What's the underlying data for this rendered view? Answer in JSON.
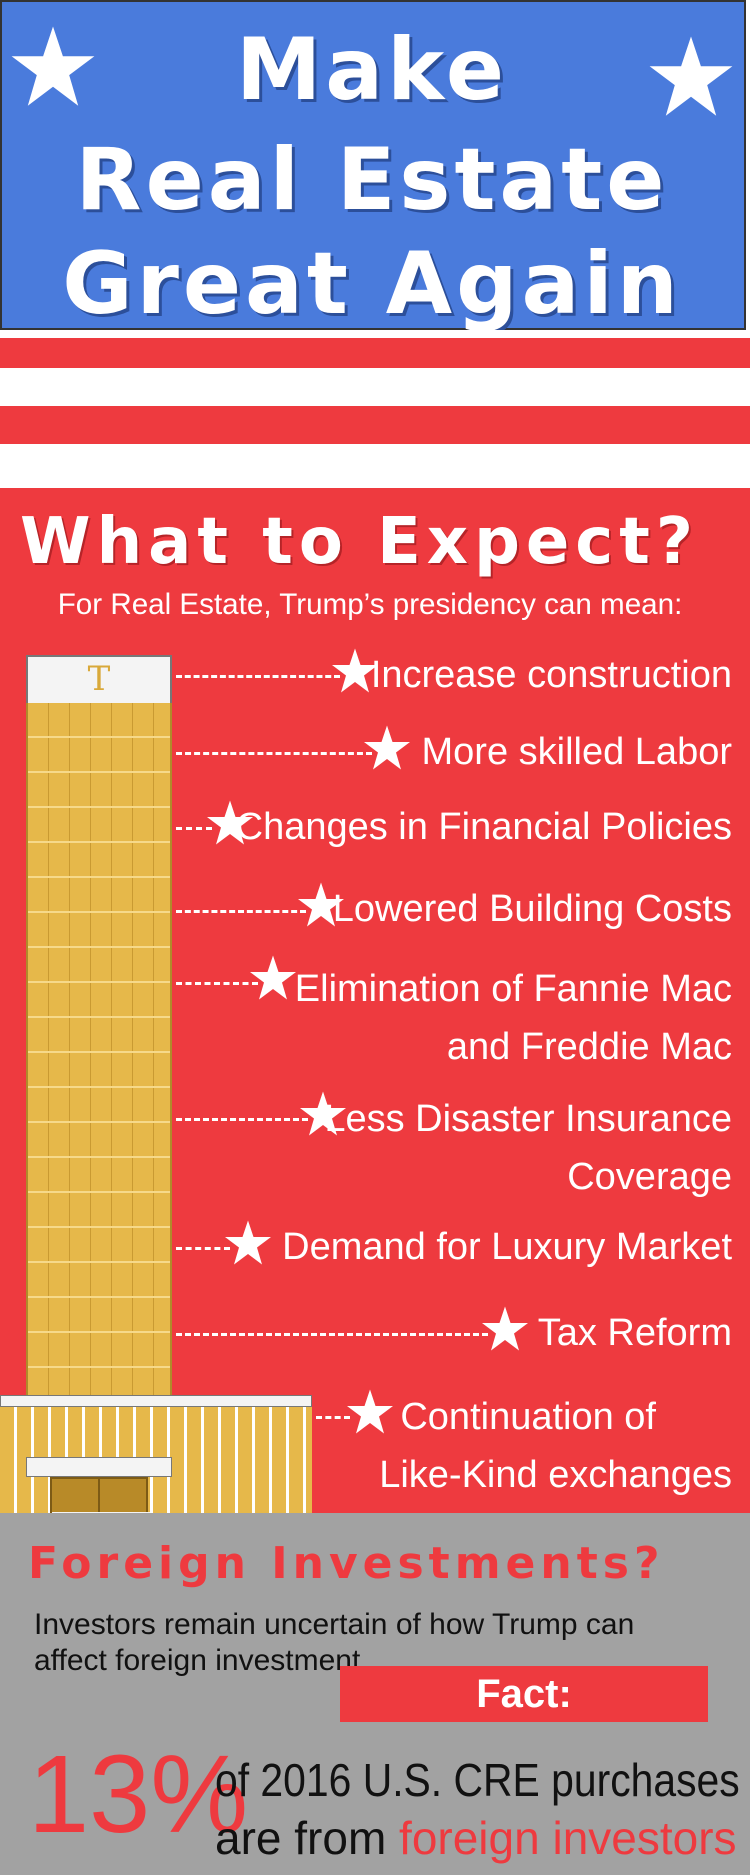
{
  "header": {
    "title_line_1": "Make",
    "title_line_2": "Real Estate",
    "title_line_3": "Great Again"
  },
  "expect": {
    "title": "What to Expect?",
    "subtitle": "For Real Estate, Trump’s presidency can mean:",
    "building_letter": "T",
    "items": [
      {
        "line1": "Increase construction",
        "line2": ""
      },
      {
        "line1": "More skilled Labor",
        "line2": ""
      },
      {
        "line1": "Changes in Financial Policies",
        "line2": ""
      },
      {
        "line1": "Lowered Building Costs",
        "line2": ""
      },
      {
        "line1": "Elimination of Fannie Mac",
        "line2": "and Freddie Mac"
      },
      {
        "line1": "Less Disaster Insurance",
        "line2": "Coverage"
      },
      {
        "line1": "Demand  for Luxury Market",
        "line2": ""
      },
      {
        "line1": "Tax Reform",
        "line2": ""
      },
      {
        "line1": "Continuation of",
        "line2": "Like-Kind exchanges"
      }
    ]
  },
  "foreign": {
    "title": "Foreign Investments?",
    "description": "Investors remain uncertain of  how Trump can affect foreign investment.",
    "fact_label": "Fact:",
    "fact_percent": "13%",
    "fact_line_1": "of 2016 U.S. CRE purchases",
    "fact_line_2_prefix": "are from ",
    "fact_line_2_highlight": "foreign investors"
  },
  "colors": {
    "blue": "#4a7bdc",
    "red": "#ee3a3f",
    "gold": "#e6b84a",
    "gray": "#a2a2a2",
    "white": "#ffffff"
  }
}
